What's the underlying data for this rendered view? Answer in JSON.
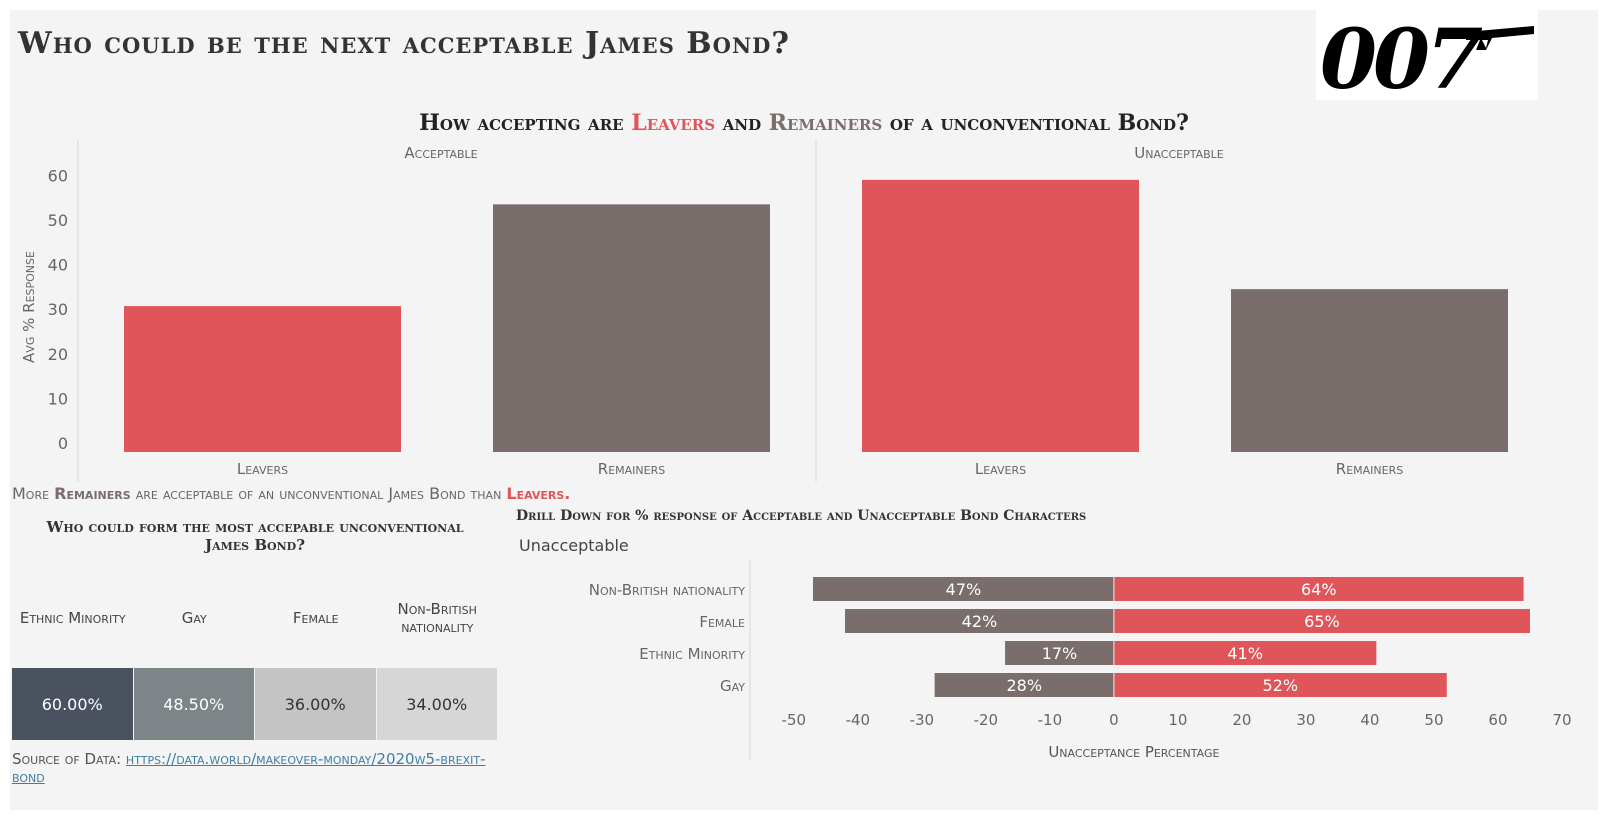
{
  "title": "Who could be the next acceptable James Bond?",
  "logo_text": "007",
  "subtitle": {
    "part1": "How accepting are ",
    "leavers": "Leavers",
    "part2": " and ",
    "remainers": "Remainers",
    "part3": " of a unconventional Bond?"
  },
  "note": {
    "part1": "More ",
    "remainers": "Remainers",
    "part2": " are acceptable of an unconventional James Bond than ",
    "leavers": "Leavers."
  },
  "heatmap": {
    "title": "Who could form the most accepable unconventional James Bond?",
    "headers": [
      "Ethnic Minority",
      "Gay",
      "Female",
      "Non-British nationality"
    ],
    "values": [
      "60.00%",
      "48.50%",
      "36.00%",
      "34.00%"
    ],
    "colors": [
      "#4a5260",
      "#7d8589",
      "#c4c4c4",
      "#d6d6d6"
    ]
  },
  "source": {
    "label": "Source of Data: ",
    "link": "https://data.world/makeover-monday/2020w5-brexit-bond"
  },
  "drilldown": {
    "title": "Drill Down for % response of Acceptable and Unacceptable Bond Characters",
    "filter_value": "Unacceptable"
  },
  "colors": {
    "leavers": "#e0555a",
    "remainers": "#7a6e6c"
  },
  "chart_data": [
    {
      "type": "bar",
      "panels": [
        "Acceptable",
        "Unacceptable"
      ],
      "categories": [
        "Leavers",
        "Remainers"
      ],
      "values": [
        [
          30.7,
          53.5
        ],
        [
          59,
          34.5
        ]
      ],
      "ylabel": "Avg % Response",
      "yticks": [
        0,
        10,
        20,
        30,
        40,
        50,
        60
      ],
      "ylim": [
        -2,
        63
      ],
      "grid": false
    },
    {
      "type": "bar",
      "orientation": "horizontal",
      "categories": [
        "Non-British nationality",
        "Female",
        "Ethnic Minority",
        "Gay"
      ],
      "series": [
        {
          "values": [
            -47,
            -42,
            -17,
            -28
          ],
          "labels": [
            "47%",
            "42%",
            "17%",
            "28%"
          ]
        },
        {
          "values": [
            64,
            65,
            41,
            52
          ],
          "labels": [
            "64%",
            "65%",
            "41%",
            "52%"
          ]
        }
      ],
      "xlabel": "Unacceptance Percentage",
      "xticks": [
        -50,
        -40,
        -30,
        -20,
        -10,
        0,
        10,
        20,
        30,
        40,
        50,
        60,
        70
      ],
      "xlim": [
        -52,
        70
      ]
    }
  ]
}
